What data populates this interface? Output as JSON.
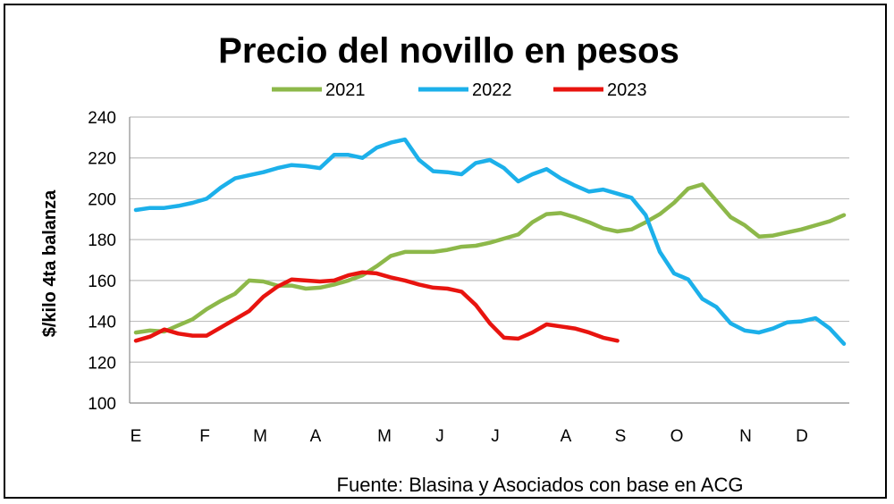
{
  "chart_data": {
    "type": "line",
    "title": "Precio del novillo en pesos",
    "ylabel": "$/kilo 4ta balanza",
    "xlabel": "",
    "ylim": [
      100,
      240
    ],
    "yticks": [
      100,
      120,
      140,
      160,
      180,
      200,
      220,
      240
    ],
    "months": [
      "E",
      "F",
      "M",
      "A",
      "M",
      "J",
      "J",
      "A",
      "S",
      "O",
      "N",
      "D"
    ],
    "grid": "horizontal",
    "legend_position": "top",
    "source": "Fuente: Blasina y Asociados con base en ACG",
    "series": [
      {
        "name": "2021",
        "color": "#8db84a",
        "values": [
          134.5,
          135.5,
          135.0,
          138.0,
          141.0,
          146.0,
          150.0,
          153.5,
          160.0,
          159.5,
          157.5,
          157.5,
          156.0,
          156.5,
          158.0,
          160.0,
          162.5,
          167.0,
          172.0,
          174.0,
          174.0,
          174.0,
          175.0,
          176.5,
          177.0,
          178.5,
          180.5,
          182.5,
          188.5,
          192.5,
          193.0,
          191.0,
          188.5,
          185.5,
          184.0,
          185.0,
          188.5,
          192.5,
          198.0,
          205.0,
          207.0,
          199.0,
          191.0,
          187.0,
          181.5,
          182.0,
          183.5,
          185.0,
          187.0,
          189.0,
          192.0
        ]
      },
      {
        "name": "2022",
        "color": "#1cb0ea",
        "values": [
          194.5,
          195.5,
          195.5,
          196.5,
          198.0,
          200.0,
          205.5,
          210.0,
          211.5,
          213.0,
          215.0,
          216.5,
          216.0,
          215.0,
          221.5,
          221.5,
          220.0,
          225.0,
          227.5,
          229.0,
          219.0,
          213.5,
          213.0,
          212.0,
          217.5,
          219.0,
          215.0,
          208.5,
          212.0,
          214.5,
          210.0,
          206.5,
          203.5,
          204.5,
          202.5,
          200.5,
          192.0,
          174.0,
          163.5,
          160.5,
          151.0,
          147.0,
          139.0,
          135.5,
          134.5,
          136.5,
          139.5,
          140.0,
          141.5,
          136.5,
          129.0
        ]
      },
      {
        "name": "2023",
        "color": "#e8140f",
        "values": [
          130.5,
          132.5,
          136.0,
          134.0,
          133.0,
          133.0,
          137.0,
          141.0,
          145.0,
          152.0,
          157.0,
          160.5,
          160.0,
          159.5,
          160.0,
          162.5,
          164.0,
          163.5,
          161.5,
          160.0,
          158.0,
          156.5,
          156.0,
          154.5,
          148.0,
          139.0,
          132.0,
          131.5,
          134.5,
          138.5,
          137.5,
          136.5,
          134.5,
          132.0,
          130.5
        ]
      }
    ]
  }
}
